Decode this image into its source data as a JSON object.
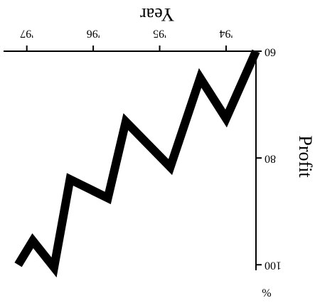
{
  "chart_data": {
    "type": "line",
    "xlabel": "Year",
    "ylabel": "Profit",
    "y_unit": "%",
    "x": [
      1993.55,
      1994,
      1994.39,
      1994.84,
      1995.51,
      1995.78,
      1996.35,
      1996.59,
      1996.91,
      1997.13
    ],
    "values": [
      60,
      72.6,
      65,
      81.7,
      73.2,
      87.5,
      84,
      100.5,
      95.5,
      100
    ],
    "color": "#000000",
    "xlim": [
      1993.55,
      1997.35
    ],
    "xticks": [
      {
        "value": 1994,
        "label": "'94"
      },
      {
        "value": 1995,
        "label": "'95"
      },
      {
        "value": 1996,
        "label": "'96"
      },
      {
        "value": 1997,
        "label": "'97"
      }
    ],
    "ylim": [
      60,
      100.5
    ],
    "yticks": [
      60,
      80,
      100
    ]
  }
}
